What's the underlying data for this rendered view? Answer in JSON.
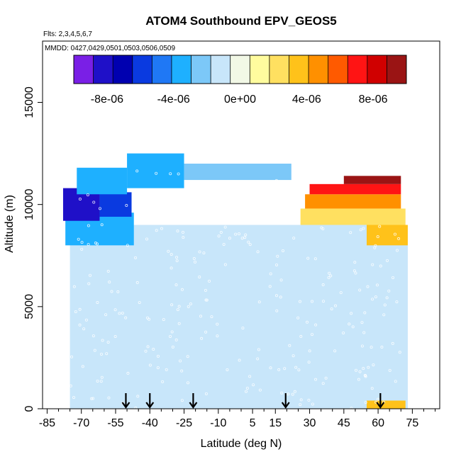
{
  "chart_data": {
    "type": "heatmap",
    "title": "ATOM4 Southbound EPV_GEOS5",
    "flights_note": "Flts: 2,3,4,5,6,7",
    "dates_note": "MMDD: 0427,0429,0501,0503,0506,0509",
    "xlabel": "Latitude (deg N)",
    "ylabel": "Altitude (m)",
    "xlim": [
      -87,
      87
    ],
    "ylim": [
      0,
      18000
    ],
    "x_ticks": [
      -85,
      -70,
      -55,
      -40,
      -25,
      -10,
      5,
      15,
      30,
      45,
      60,
      75
    ],
    "x_tick_labels": [
      "-85",
      "-70",
      "-55",
      "-40",
      "-25",
      "-10",
      "5",
      "15",
      "30",
      "45",
      "60",
      "75"
    ],
    "y_ticks": [
      0,
      5000,
      10000,
      15000
    ],
    "y_tick_labels": [
      "0",
      "5000",
      "10000",
      "15000"
    ],
    "colorbar": {
      "range": [
        -1e-05,
        1e-05
      ],
      "ticks": [
        -8e-06,
        -4e-06,
        0,
        4e-06,
        8e-06
      ],
      "tick_labels": [
        "-8e-06",
        "-4e-06",
        "0e+00",
        "4e-06",
        "8e-06"
      ],
      "colors": [
        "#7a1fe6",
        "#1f10c8",
        "#0000b0",
        "#0a3ae0",
        "#1f78f5",
        "#1eb0ff",
        "#7cc8f8",
        "#c8e6fa",
        "#f2f8e6",
        "#fffc9e",
        "#ffe060",
        "#ffc21a",
        "#ff9000",
        "#ff5a00",
        "#ff1414",
        "#d00000",
        "#9a1414"
      ]
    },
    "arrow_latitudes": [
      -50.5,
      -40,
      -21,
      19.5,
      61
    ],
    "regions": [
      {
        "lat_start": -75,
        "lat_end": 73,
        "alt_start": 0,
        "alt_end": 9000,
        "value": -8e-07
      },
      {
        "lat_start": -70,
        "lat_end": -50,
        "alt_start": 5000,
        "alt_end": 8000,
        "value": -1.5e-06
      },
      {
        "lat_start": -77,
        "lat_end": -47,
        "alt_start": 8000,
        "alt_end": 9600,
        "value": -3.5e-06
      },
      {
        "lat_start": -78,
        "lat_end": -62,
        "alt_start": 9200,
        "alt_end": 10800,
        "value": -8e-06
      },
      {
        "lat_start": -62,
        "lat_end": -48,
        "alt_start": 9400,
        "alt_end": 10600,
        "value": -6e-06
      },
      {
        "lat_start": -72,
        "lat_end": -50,
        "alt_start": 10500,
        "alt_end": 11800,
        "value": -4e-06
      },
      {
        "lat_start": -50,
        "lat_end": -25,
        "alt_start": 10800,
        "alt_end": 12500,
        "value": -3.5e-06
      },
      {
        "lat_start": -25,
        "lat_end": 22,
        "alt_start": 11200,
        "alt_end": 12000,
        "value": -2e-06
      },
      {
        "lat_start": 26,
        "lat_end": 72,
        "alt_start": 9000,
        "alt_end": 9800,
        "value": 2e-06
      },
      {
        "lat_start": 55,
        "lat_end": 73,
        "alt_start": 8000,
        "alt_end": 9000,
        "value": 3e-06
      },
      {
        "lat_start": 28,
        "lat_end": 70,
        "alt_start": 9800,
        "alt_end": 10500,
        "value": 5e-06
      },
      {
        "lat_start": 30,
        "lat_end": 70,
        "alt_start": 10500,
        "alt_end": 11000,
        "value": 7e-06
      },
      {
        "lat_start": 45,
        "lat_end": 70,
        "alt_start": 11000,
        "alt_end": 11400,
        "value": 9e-06
      },
      {
        "lat_start": 55,
        "lat_end": 72,
        "alt_start": 0,
        "alt_end": 400,
        "value": 4e-06
      }
    ]
  }
}
